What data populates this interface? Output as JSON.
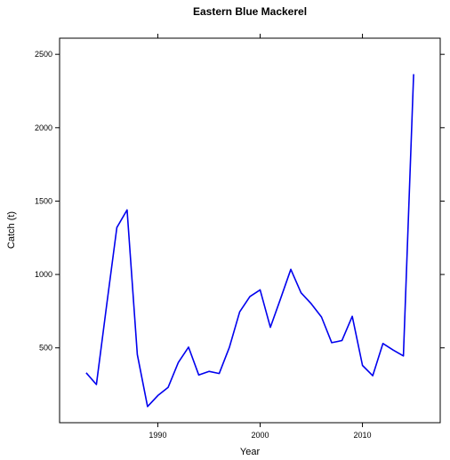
{
  "chart_data": {
    "type": "line",
    "title": "Eastern Blue Mackerel",
    "xlabel": "Year",
    "ylabel": "Catch (t)",
    "xlim": [
      1980.4,
      2017.6
    ],
    "ylim": [
      -10,
      2610
    ],
    "x_ticks": [
      1990,
      2000,
      2010
    ],
    "y_ticks": [
      500,
      1000,
      1500,
      2000,
      2500
    ],
    "grid": false,
    "line_color": "#0000ee",
    "series": [
      {
        "x": [
          1983,
          1984,
          1985,
          1986,
          1987,
          1988,
          1989,
          1990,
          1991,
          1992,
          1993,
          1994,
          1995,
          1996,
          1997,
          1998,
          1999,
          2000,
          2001,
          2002,
          2003,
          2004,
          2005,
          2006,
          2007,
          2008,
          2009,
          2010,
          2011,
          2012,
          2013,
          2014,
          2015
        ],
        "values": [
          330,
          250,
          790,
          1320,
          1440,
          455,
          100,
          175,
          230,
          400,
          505,
          315,
          340,
          325,
          505,
          745,
          850,
          895,
          640,
          835,
          1035,
          875,
          800,
          710,
          535,
          550,
          715,
          380,
          310,
          530,
          485,
          445,
          2365
        ]
      }
    ]
  }
}
